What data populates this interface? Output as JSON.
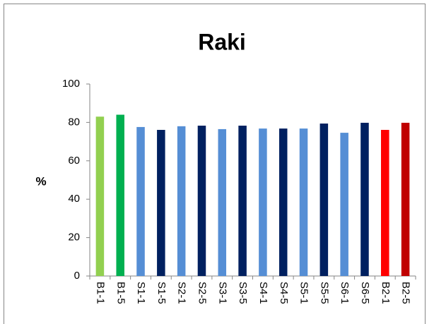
{
  "chart_data": {
    "type": "bar",
    "title": "Raki",
    "y_label": "%",
    "categories": [
      "B1-1",
      "B1-5",
      "S1-1",
      "S1-5",
      "S2-1",
      "S2-5",
      "S3-1",
      "S3-5",
      "S4-1",
      "S4-5",
      "S5-1",
      "S5-5",
      "S6-1",
      "S6-5",
      "B2-1",
      "B2-5"
    ],
    "values": [
      83,
      84,
      77.6,
      76.1,
      78,
      78.3,
      76.5,
      78.3,
      76.8,
      76.8,
      76.8,
      79.4,
      74.6,
      79.8,
      76.1,
      79.8
    ],
    "colors": [
      "#92d050",
      "#00b050",
      "#558ed5",
      "#002060",
      "#558ed5",
      "#002060",
      "#558ed5",
      "#002060",
      "#558ed5",
      "#002060",
      "#558ed5",
      "#002060",
      "#558ed5",
      "#002060",
      "#ff0000",
      "#c00000"
    ],
    "ylim": [
      0,
      100
    ],
    "yticks": [
      0,
      20,
      40,
      60,
      80,
      100
    ],
    "grid": false
  }
}
